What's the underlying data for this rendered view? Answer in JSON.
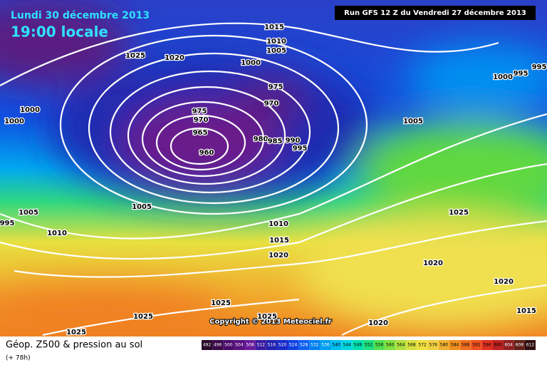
{
  "header": {
    "date": "Lundi 30 décembre 2013",
    "time": "19:00 locale",
    "run": "Run GFS 12 Z du Vendredi 27 décembre 2013"
  },
  "copyright": "Copyright © 2013 Meteociel.fr",
  "footer": {
    "title": "Géop. Z500 & pression au sol",
    "lead": "(+ 78h)"
  },
  "isobar_labels": [
    1015,
    1010,
    1005,
    1025,
    1020,
    1000,
    975,
    970,
    975,
    970,
    965,
    960,
    980,
    985,
    990,
    995,
    1000,
    1000,
    1005,
    1000,
    995,
    995,
    1005,
    1005,
    995,
    1010,
    1010,
    1015,
    1020,
    1025,
    1020,
    1020,
    1015,
    1025,
    1025,
    1025,
    1020,
    1025
  ],
  "legend": {
    "values": [
      492,
      496,
      500,
      504,
      508,
      512,
      516,
      520,
      524,
      528,
      532,
      536,
      540,
      544,
      548,
      552,
      556,
      560,
      564,
      568,
      572,
      576,
      580,
      584,
      588,
      592,
      596,
      600,
      604,
      608,
      612
    ],
    "colors": [
      "#2a0a2a",
      "#3a0a4a",
      "#4a0a6a",
      "#5a1080",
      "#6a1a9a",
      "#3a1aa0",
      "#2020b0",
      "#1a2ac8",
      "#1040e0",
      "#1060f0",
      "#0080f0",
      "#00a0f0",
      "#00c0f0",
      "#00d8e0",
      "#00e0b0",
      "#20e080",
      "#50e050",
      "#80e040",
      "#b0e040",
      "#d8e040",
      "#f0e040",
      "#f0d040",
      "#f0b030",
      "#f09020",
      "#f07020",
      "#f05020",
      "#e03020",
      "#c02020",
      "#902020",
      "#602018",
      "#301010"
    ]
  }
}
